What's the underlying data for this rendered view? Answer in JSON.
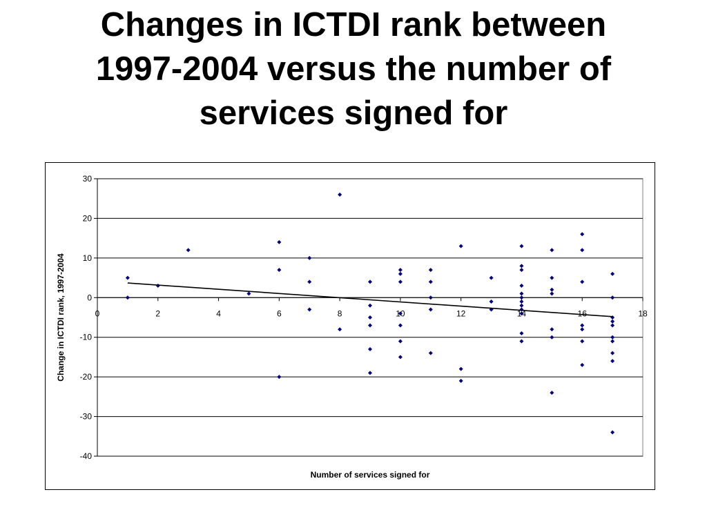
{
  "slide": {
    "title_lines": [
      "Changes in ICTDI rank between",
      "1997-2004 versus the number of",
      "services signed for"
    ]
  },
  "chart_data": {
    "type": "scatter",
    "title": "Changes in ICTDI rank between 1997-2004 versus the number of services signed for",
    "xlabel": "Number of services signed for",
    "ylabel": "Change in ICTDI rank, 1997-2004",
    "xlim": [
      0,
      18
    ],
    "ylim": [
      -40,
      30
    ],
    "xticks": [
      0,
      2,
      4,
      6,
      8,
      10,
      12,
      14,
      16,
      18
    ],
    "yticks": [
      30,
      20,
      10,
      0,
      -10,
      -20,
      -30,
      -40
    ],
    "grid": "horizontal",
    "legend": "none",
    "marker_color": "#000080",
    "trendline": {
      "type": "linear",
      "x": [
        1,
        17
      ],
      "y": [
        3.7,
        -4.8
      ],
      "color": "#000000"
    },
    "series": [
      {
        "points": [
          [
            1,
            5
          ],
          [
            1,
            0
          ],
          [
            2,
            3
          ],
          [
            3,
            12
          ],
          [
            5,
            1
          ],
          [
            6,
            14
          ],
          [
            6,
            7
          ],
          [
            6,
            -20
          ],
          [
            7,
            10
          ],
          [
            7,
            4
          ],
          [
            7,
            -3
          ],
          [
            8,
            26
          ],
          [
            8,
            -8
          ],
          [
            9,
            4
          ],
          [
            9,
            -2
          ],
          [
            9,
            -5
          ],
          [
            9,
            -7
          ],
          [
            9,
            -13
          ],
          [
            9,
            -19
          ],
          [
            10,
            7
          ],
          [
            10,
            6
          ],
          [
            10,
            4
          ],
          [
            10,
            -4
          ],
          [
            10,
            -7
          ],
          [
            10,
            -11
          ],
          [
            10,
            -15
          ],
          [
            11,
            7
          ],
          [
            11,
            4
          ],
          [
            11,
            0
          ],
          [
            11,
            -3
          ],
          [
            11,
            -14
          ],
          [
            12,
            13
          ],
          [
            12,
            -18
          ],
          [
            12,
            -21
          ],
          [
            13,
            5
          ],
          [
            13,
            -1
          ],
          [
            13,
            -3
          ],
          [
            14,
            13
          ],
          [
            14,
            8
          ],
          [
            14,
            7
          ],
          [
            14,
            3
          ],
          [
            14,
            1
          ],
          [
            14,
            0
          ],
          [
            14,
            -1
          ],
          [
            14,
            -2
          ],
          [
            14,
            -3
          ],
          [
            14,
            -4
          ],
          [
            14,
            -9
          ],
          [
            14,
            -11
          ],
          [
            15,
            12
          ],
          [
            15,
            5
          ],
          [
            15,
            2
          ],
          [
            15,
            1
          ],
          [
            15,
            -8
          ],
          [
            15,
            -10
          ],
          [
            15,
            -24
          ],
          [
            16,
            16
          ],
          [
            16,
            12
          ],
          [
            16,
            4
          ],
          [
            16,
            -7
          ],
          [
            16,
            -8
          ],
          [
            16,
            -11
          ],
          [
            16,
            -17
          ],
          [
            17,
            6
          ],
          [
            17,
            0
          ],
          [
            17,
            -5
          ],
          [
            17,
            -6
          ],
          [
            17,
            -7
          ],
          [
            17,
            -10
          ],
          [
            17,
            -11
          ],
          [
            17,
            -14
          ],
          [
            17,
            -16
          ],
          [
            17,
            -34
          ]
        ]
      }
    ]
  }
}
